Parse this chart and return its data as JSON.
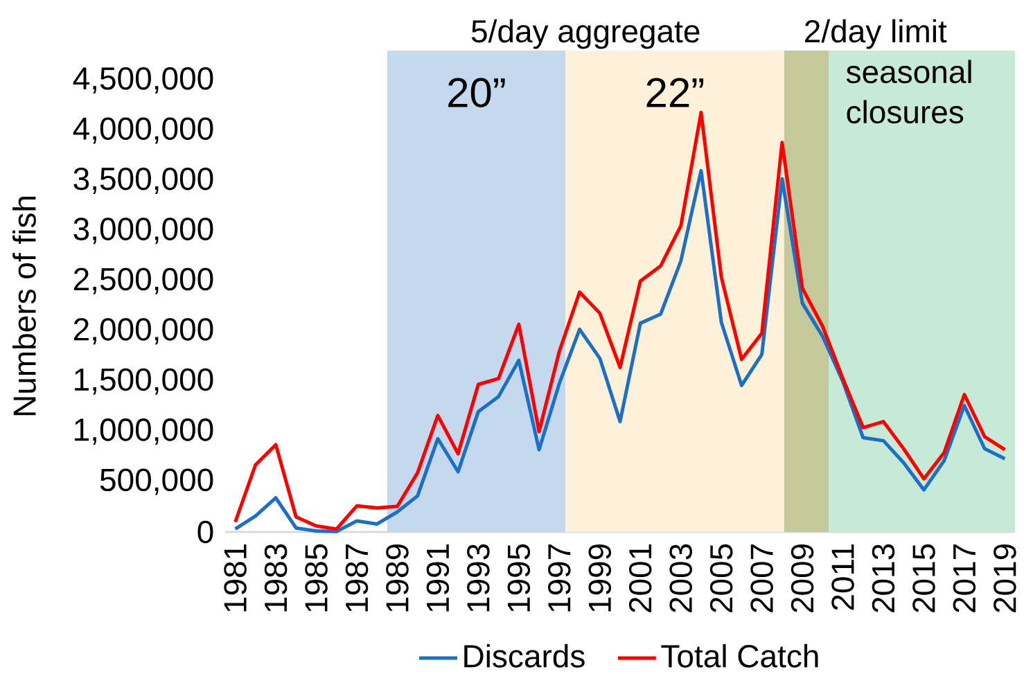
{
  "chart_data": {
    "type": "line",
    "ylabel": "Numbers of fish",
    "x": [
      1981,
      1982,
      1983,
      1984,
      1985,
      1986,
      1987,
      1988,
      1989,
      1990,
      1991,
      1992,
      1993,
      1994,
      1995,
      1996,
      1997,
      1998,
      1999,
      2000,
      2001,
      2002,
      2003,
      2004,
      2005,
      2006,
      2007,
      2008,
      2009,
      2010,
      2011,
      2012,
      2013,
      2014,
      2015,
      2016,
      2017,
      2018,
      2019
    ],
    "xlim": [
      1980.5,
      2019.5
    ],
    "xticks": [
      1981,
      1983,
      1985,
      1987,
      1989,
      1991,
      1993,
      1995,
      1997,
      1999,
      2001,
      2003,
      2005,
      2007,
      2009,
      2011,
      2013,
      2015,
      2017,
      2019
    ],
    "ylim": [
      0,
      4500000
    ],
    "yticks": [
      0,
      {
        "value": 500000,
        "label": "500,000"
      },
      {
        "value": 1000000,
        "label": "1,000,000"
      },
      {
        "value": 1500000,
        "label": "1,500,000"
      },
      {
        "value": 2000000,
        "label": "2,000,000"
      },
      {
        "value": 2500000,
        "label": "2,500,000"
      },
      {
        "value": 3000000,
        "label": "3,000,000"
      },
      {
        "value": 3500000,
        "label": "3,500,000"
      },
      {
        "value": 4000000,
        "label": "4,000,000"
      },
      {
        "value": 4500000,
        "label": "4,500,000"
      }
    ],
    "series": [
      {
        "name": "Discards",
        "color": "#1b6fc6",
        "values": [
          30000,
          160000,
          340000,
          40000,
          10000,
          5000,
          110000,
          80000,
          200000,
          360000,
          930000,
          600000,
          1200000,
          1350000,
          1710000,
          820000,
          1480000,
          2020000,
          1730000,
          1100000,
          2080000,
          2170000,
          2700000,
          3600000,
          2090000,
          1460000,
          1770000,
          3520000,
          2280000,
          1950000,
          1500000,
          940000,
          910000,
          690000,
          420000,
          710000,
          1260000,
          830000,
          730000
        ]
      },
      {
        "name": "Total Catch",
        "color": "#ff0000",
        "values": [
          100000,
          670000,
          870000,
          150000,
          60000,
          30000,
          260000,
          240000,
          255000,
          590000,
          1160000,
          780000,
          1470000,
          1530000,
          2070000,
          1000000,
          1800000,
          2390000,
          2180000,
          1640000,
          2500000,
          2650000,
          3050000,
          4180000,
          2540000,
          1720000,
          1980000,
          3880000,
          2430000,
          2050000,
          1530000,
          1040000,
          1100000,
          830000,
          530000,
          790000,
          1370000,
          950000,
          820000
        ]
      }
    ],
    "bands": [
      {
        "axis": "x",
        "from": 1988.5,
        "to": 1997.3,
        "label": "20”",
        "color": "#c5d9ee"
      },
      {
        "axis": "x",
        "from": 1997.3,
        "to": 2008.1,
        "label": "22”",
        "color": "#fdf2d9"
      },
      {
        "axis": "x",
        "from": 2008.1,
        "to": 2010.3,
        "label": "2/day limit",
        "color": "#c3c99a"
      },
      {
        "axis": "x",
        "from": 2010.3,
        "to": 2019.5,
        "label": "seasonal closures",
        "color": "#c6ead5"
      }
    ],
    "annotations": [
      "5/day aggregate"
    ],
    "legend": "bottom",
    "grid": false,
    "marker": "none",
    "line_style": "solid"
  }
}
